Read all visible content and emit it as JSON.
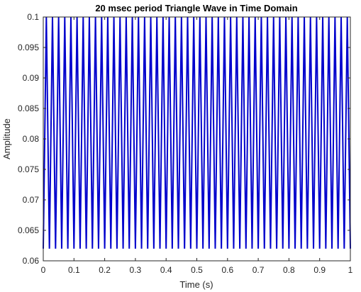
{
  "chart_data": {
    "type": "line",
    "title": "20 msec period Triangle Wave in Time Domain",
    "xlabel": "Time (s)",
    "ylabel": "Amplitude",
    "xlim": [
      0,
      1
    ],
    "ylim": [
      0.06,
      0.1
    ],
    "x_ticks": [
      0,
      0.1,
      0.2,
      0.3,
      0.4,
      0.5,
      0.6,
      0.7,
      0.8,
      0.9,
      1
    ],
    "x_tick_labels": [
      "0",
      "0.1",
      "0.2",
      "0.3",
      "0.4",
      "0.5",
      "0.6",
      "0.7",
      "0.8",
      "0.9",
      "1"
    ],
    "y_ticks": [
      0.06,
      0.065,
      0.07,
      0.075,
      0.08,
      0.085,
      0.09,
      0.095,
      0.1
    ],
    "y_tick_labels": [
      "0.06",
      "0.065",
      "0.07",
      "0.075",
      "0.08",
      "0.085",
      "0.09",
      "0.095",
      "0.1"
    ],
    "grid": false,
    "series": [
      {
        "color": "#0000cc",
        "period": 0.02,
        "x_start": 0,
        "x_end": 1,
        "y_min": 0.062,
        "y_max": 0.1
      }
    ]
  }
}
